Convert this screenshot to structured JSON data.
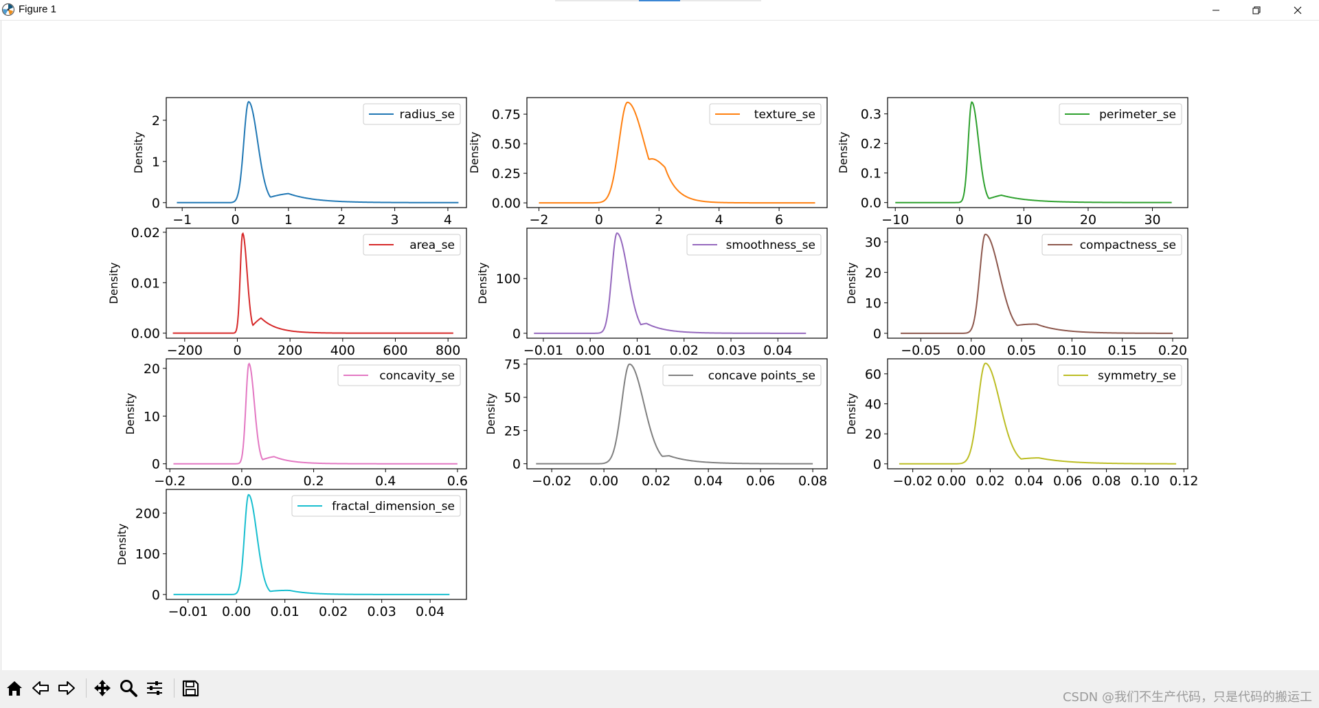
{
  "window": {
    "title": "Figure 1",
    "buttons": {
      "minimize": "minimize-icon",
      "restore": "restore-icon",
      "close": "close-icon"
    }
  },
  "toolbar": {
    "tools": [
      "home-icon",
      "back-arrow-icon",
      "forward-arrow-icon",
      "pan-move-icon",
      "zoom-magnifier-icon",
      "configure-subplots-icon",
      "save-disk-icon"
    ]
  },
  "watermark": "CSDN @我们不生产代码，只是代码的搬运工",
  "chart_data": [
    {
      "type": "line",
      "title": "",
      "xlabel": "",
      "ylabel": "Density",
      "series": [
        {
          "name": "radius_se",
          "color": "#1f77b4",
          "peak_x": 0.25,
          "peak_y": 2.45,
          "w_left": 0.09,
          "w_right": 0.17,
          "tail": [
            [
              1.0,
              0.22
            ],
            [
              2.5,
              0.01
            ]
          ]
        }
      ],
      "xlim": [
        -1.3,
        4.35
      ],
      "ylim": [
        -0.12,
        2.55
      ],
      "xticks": [
        -1,
        0,
        1,
        2,
        3,
        4
      ],
      "xtick_labels": [
        "−1",
        "0",
        "1",
        "2",
        "3",
        "4"
      ],
      "yticks": [
        0,
        1,
        2
      ],
      "ytick_labels": [
        "0",
        "1",
        "2"
      ],
      "x_range": [
        -1.1,
        4.2
      ],
      "legend": "top-right",
      "grid": false
    },
    {
      "type": "line",
      "title": "",
      "xlabel": "",
      "ylabel": "Density",
      "series": [
        {
          "name": "texture_se",
          "color": "#ff7f0e",
          "peak_x": 0.95,
          "peak_y": 0.85,
          "w_left": 0.28,
          "w_right": 0.55,
          "tail": [
            [
              2.2,
              0.3
            ],
            [
              3.3,
              0.02
            ]
          ]
        }
      ],
      "xlim": [
        -2.4,
        7.6
      ],
      "ylim": [
        -0.04,
        0.89
      ],
      "xticks": [
        -2,
        0,
        2,
        4,
        6
      ],
      "xtick_labels": [
        "−2",
        "0",
        "2",
        "4",
        "6"
      ],
      "yticks": [
        0,
        0.25,
        0.5,
        0.75
      ],
      "ytick_labels": [
        "0.00",
        "0.25",
        "0.50",
        "0.75"
      ],
      "x_range": [
        -2.0,
        7.2
      ],
      "legend": "top-right",
      "grid": false
    },
    {
      "type": "line",
      "title": "",
      "xlabel": "",
      "ylabel": "Density",
      "series": [
        {
          "name": "perimeter_se",
          "color": "#2ca02c",
          "peak_x": 1.9,
          "peak_y": 0.34,
          "w_left": 0.55,
          "w_right": 1.05,
          "tail": [
            [
              6.5,
              0.025
            ],
            [
              20,
              0.001
            ]
          ]
        }
      ],
      "xlim": [
        -11.2,
        35.5
      ],
      "ylim": [
        -0.017,
        0.355
      ],
      "xticks": [
        -10,
        0,
        10,
        20,
        30
      ],
      "xtick_labels": [
        "−10",
        "0",
        "10",
        "20",
        "30"
      ],
      "yticks": [
        0,
        0.1,
        0.2,
        0.3
      ],
      "ytick_labels": [
        "0.0",
        "0.1",
        "0.2",
        "0.3"
      ],
      "x_range": [
        -10.0,
        33.0
      ],
      "legend": "top-right",
      "grid": false
    },
    {
      "type": "line",
      "title": "",
      "xlabel": "",
      "ylabel": "Density",
      "series": [
        {
          "name": "area_se",
          "color": "#d62728",
          "peak_x": 20,
          "peak_y": 0.0198,
          "w_left": 9,
          "w_right": 17,
          "tail": [
            [
              90,
              0.003
            ],
            [
              250,
              0.0002
            ]
          ]
        }
      ],
      "xlim": [
        -270,
        870
      ],
      "ylim": [
        -0.001,
        0.0208
      ],
      "xticks": [
        -200,
        0,
        200,
        400,
        600,
        800
      ],
      "xtick_labels": [
        "−200",
        "0",
        "200",
        "400",
        "600",
        "800"
      ],
      "yticks": [
        0,
        0.01,
        0.02
      ],
      "ytick_labels": [
        "0.00",
        "0.01",
        "0.02"
      ],
      "x_range": [
        -245,
        820
      ],
      "legend": "top-right",
      "grid": false
    },
    {
      "type": "line",
      "title": "",
      "xlabel": "",
      "ylabel": "Density",
      "series": [
        {
          "name": "smoothness_se",
          "color": "#9467bd",
          "peak_x": 0.0057,
          "peak_y": 183,
          "w_left": 0.0011,
          "w_right": 0.0023,
          "tail": [
            [
              0.012,
              18
            ],
            [
              0.022,
              1.5
            ]
          ]
        }
      ],
      "xlim": [
        -0.0135,
        0.0505
      ],
      "ylim": [
        -9,
        192
      ],
      "xticks": [
        -0.01,
        0,
        0.01,
        0.02,
        0.03,
        0.04
      ],
      "xtick_labels": [
        "−0.01",
        "0.00",
        "0.01",
        "0.02",
        "0.03",
        "0.04"
      ],
      "yticks": [
        0,
        100
      ],
      "ytick_labels": [
        "0",
        "100"
      ],
      "x_range": [
        -0.012,
        0.046
      ],
      "legend": "top-right",
      "grid": false
    },
    {
      "type": "line",
      "title": "",
      "xlabel": "",
      "ylabel": "Density",
      "series": [
        {
          "name": "compactness_se",
          "color": "#8c564b",
          "peak_x": 0.014,
          "peak_y": 32.5,
          "w_left": 0.0055,
          "w_right": 0.014,
          "tail": [
            [
              0.065,
              3
            ],
            [
              0.12,
              0.3
            ]
          ]
        }
      ],
      "xlim": [
        -0.083,
        0.215
      ],
      "ylim": [
        -1.6,
        34.5
      ],
      "xticks": [
        -0.05,
        0,
        0.05,
        0.1,
        0.15,
        0.2
      ],
      "xtick_labels": [
        "−0.05",
        "0.00",
        "0.05",
        "0.10",
        "0.15",
        "0.20"
      ],
      "yticks": [
        0,
        10,
        20,
        30
      ],
      "ytick_labels": [
        "0",
        "10",
        "20",
        "30"
      ],
      "x_range": [
        -0.07,
        0.2
      ],
      "legend": "top-right",
      "grid": false
    },
    {
      "type": "line",
      "title": "",
      "xlabel": "",
      "ylabel": "Density",
      "series": [
        {
          "name": "concavity_se",
          "color": "#e377c2",
          "peak_x": 0.02,
          "peak_y": 21,
          "w_left": 0.0085,
          "w_right": 0.015,
          "tail": [
            [
              0.09,
              1.5
            ],
            [
              0.2,
              0.15
            ]
          ]
        }
      ],
      "xlim": [
        -0.21,
        0.625
      ],
      "ylim": [
        -1.05,
        22.0
      ],
      "xticks": [
        -0.2,
        0,
        0.2,
        0.4,
        0.6
      ],
      "xtick_labels": [
        "−0.2",
        "0.0",
        "0.2",
        "0.4",
        "0.6"
      ],
      "yticks": [
        0,
        10,
        20
      ],
      "ytick_labels": [
        "0",
        "10",
        "20"
      ],
      "x_range": [
        -0.19,
        0.6
      ],
      "legend": "top-right",
      "grid": false
    },
    {
      "type": "line",
      "title": "",
      "xlabel": "",
      "ylabel": "Density",
      "series": [
        {
          "name": "concave points_se",
          "color": "#7f7f7f",
          "peak_x": 0.0098,
          "peak_y": 75,
          "w_left": 0.003,
          "w_right": 0.0055,
          "tail": [
            [
              0.025,
              6
            ],
            [
              0.045,
              0.6
            ]
          ]
        }
      ],
      "xlim": [
        -0.0295,
        0.0855
      ],
      "ylim": [
        -3.8,
        79
      ],
      "xticks": [
        -0.02,
        0,
        0.02,
        0.04,
        0.06,
        0.08
      ],
      "xtick_labels": [
        "−0.02",
        "0.00",
        "0.02",
        "0.04",
        "0.06",
        "0.08"
      ],
      "yticks": [
        0,
        25,
        50,
        75
      ],
      "ytick_labels": [
        "0",
        "25",
        "50",
        "75"
      ],
      "x_range": [
        -0.026,
        0.08
      ],
      "legend": "top-right",
      "grid": false
    },
    {
      "type": "line",
      "title": "",
      "xlabel": "",
      "ylabel": "Density",
      "series": [
        {
          "name": "symmetry_se",
          "color": "#bcbd22",
          "peak_x": 0.0175,
          "peak_y": 67,
          "w_left": 0.0038,
          "w_right": 0.0075,
          "tail": [
            [
              0.045,
              4
            ],
            [
              0.08,
              0.4
            ]
          ]
        }
      ],
      "xlim": [
        -0.033,
        0.122
      ],
      "ylim": [
        -3.3,
        70
      ],
      "xticks": [
        -0.02,
        0,
        0.02,
        0.04,
        0.06,
        0.08,
        0.1,
        0.12
      ],
      "xtick_labels": [
        "−0.02",
        "0.00",
        "0.02",
        "0.04",
        "0.06",
        "0.08",
        "0.10",
        "0.12"
      ],
      "yticks": [
        0,
        20,
        40,
        60
      ],
      "ytick_labels": [
        "0",
        "20",
        "40",
        "60"
      ],
      "x_range": [
        -0.027,
        0.116
      ],
      "legend": "top-right",
      "grid": false
    },
    {
      "type": "line",
      "title": "",
      "xlabel": "",
      "ylabel": "Density",
      "series": [
        {
          "name": "fractal_dimension_se",
          "color": "#17becf",
          "peak_x": 0.0025,
          "peak_y": 245,
          "w_left": 0.00085,
          "w_right": 0.0017,
          "tail": [
            [
              0.011,
              10
            ],
            [
              0.02,
              1
            ]
          ]
        }
      ],
      "xlim": [
        -0.0145,
        0.0475
      ],
      "ylim": [
        -12,
        258
      ],
      "xticks": [
        -0.01,
        0,
        0.01,
        0.02,
        0.03,
        0.04
      ],
      "xtick_labels": [
        "−0.01",
        "0.00",
        "0.01",
        "0.02",
        "0.03",
        "0.04"
      ],
      "yticks": [
        0,
        100,
        200
      ],
      "ytick_labels": [
        "0",
        "100",
        "200"
      ],
      "x_range": [
        -0.013,
        0.044
      ],
      "legend": "top-right",
      "grid": false
    }
  ]
}
